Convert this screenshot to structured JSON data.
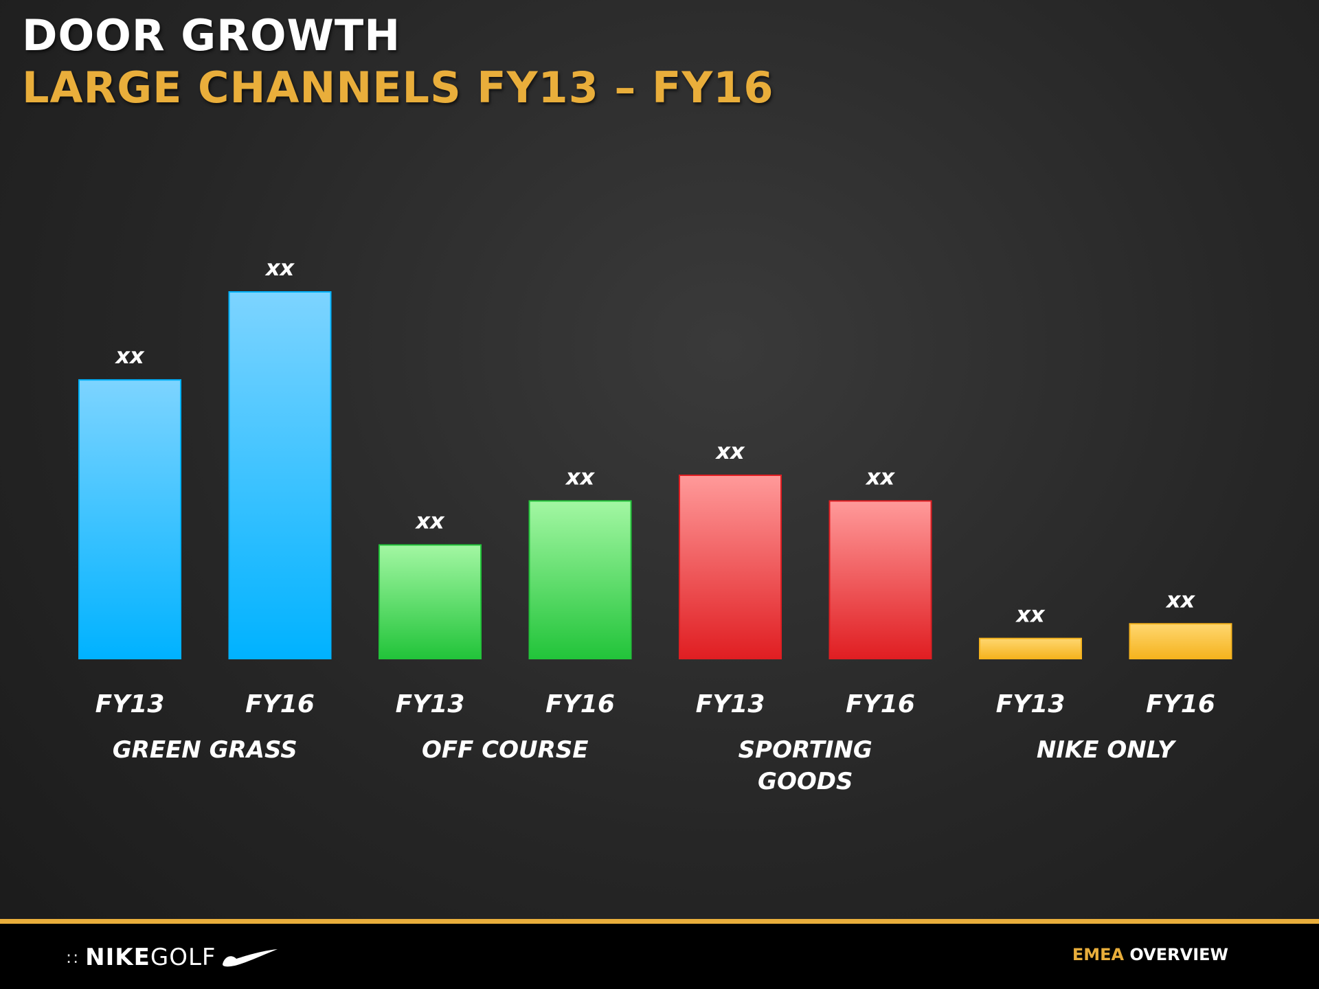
{
  "header": {
    "title": "DOOR GROWTH",
    "subtitle": "LARGE CHANNELS FY13 – FY16"
  },
  "footer": {
    "logo_nike": "NIKE",
    "logo_golf": "GOLF",
    "logo_dots": "::",
    "section_a": "EMEA",
    "section_b": "OVERVIEW",
    "accent_color": "#e9ae3b"
  },
  "chart_data": {
    "type": "bar",
    "title": "DOOR GROWTH",
    "subtitle": "LARGE CHANNELS FY13 – FY16",
    "grid": false,
    "legend": "none",
    "ylim": [
      0,
      100
    ],
    "groups": [
      {
        "name": "GREEN GRASS",
        "name_lines": [
          "GREEN GRASS"
        ],
        "color_top": "#7dd4ff",
        "color_bottom": "#00b2ff",
        "bars": [
          {
            "category": "FY13",
            "value": 76,
            "label": "xx"
          },
          {
            "category": "FY16",
            "value": 100,
            "label": "xx"
          }
        ]
      },
      {
        "name": "OFF COURSE",
        "name_lines": [
          "OFF COURSE"
        ],
        "color_top": "#a3f7a3",
        "color_bottom": "#22c43a",
        "bars": [
          {
            "category": "FY13",
            "value": 31,
            "label": "xx"
          },
          {
            "category": "FY16",
            "value": 43,
            "label": "xx"
          }
        ]
      },
      {
        "name": "SPORTING GOODS",
        "name_lines": [
          "SPORTING",
          "GOODS"
        ],
        "color_top": "#ff9a9a",
        "color_bottom": "#e01e22",
        "bars": [
          {
            "category": "FY13",
            "value": 50,
            "label": "xx"
          },
          {
            "category": "FY16",
            "value": 43,
            "label": "xx"
          }
        ]
      },
      {
        "name": "NIKE ONLY",
        "name_lines": [
          "NIKE ONLY"
        ],
        "color_top": "#ffd770",
        "color_bottom": "#f5b31e",
        "bars": [
          {
            "category": "FY13",
            "value": 5.5,
            "label": "xx"
          },
          {
            "category": "FY16",
            "value": 9.5,
            "label": "xx"
          }
        ]
      }
    ]
  }
}
